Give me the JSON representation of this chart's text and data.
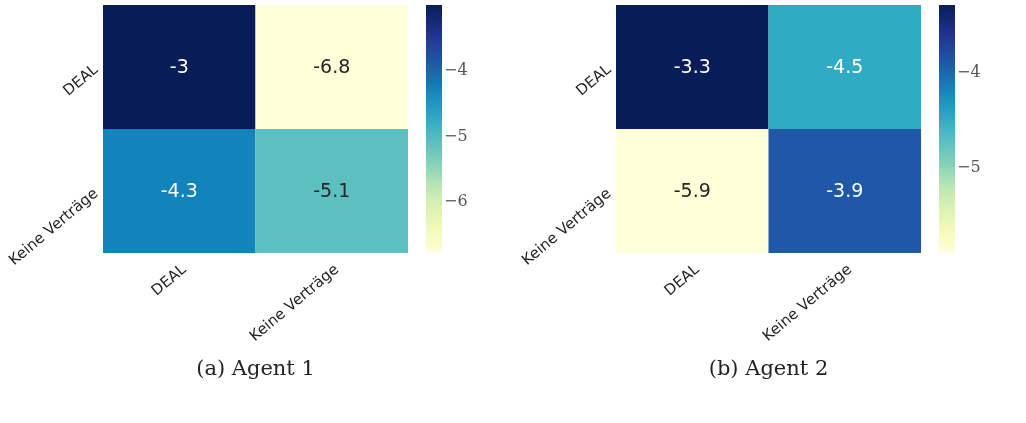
{
  "chart_data": [
    {
      "type": "heatmap",
      "title": "(a) Agent 1",
      "categories": [
        "DEAL",
        "Keine Verträge"
      ],
      "y_categories": [
        "DEAL",
        "Keine Verträge"
      ],
      "cells": [
        [
          -3,
          -6.8
        ],
        [
          -4.3,
          -5.1
        ]
      ],
      "clim": [
        -6.8,
        -3
      ],
      "cticks": [
        -6,
        -5,
        -4
      ],
      "data_labels": true
    },
    {
      "type": "heatmap",
      "title": "(b) Agent 2",
      "categories": [
        "DEAL",
        "Keine Verträge"
      ],
      "y_categories": [
        "DEAL",
        "Keine Verträge"
      ],
      "cells": [
        [
          -3.3,
          -4.5
        ],
        [
          -5.9,
          -3.9
        ]
      ],
      "clim": [
        -5.9,
        -3.3
      ],
      "cticks": [
        -5,
        -4
      ],
      "data_labels": true
    }
  ]
}
